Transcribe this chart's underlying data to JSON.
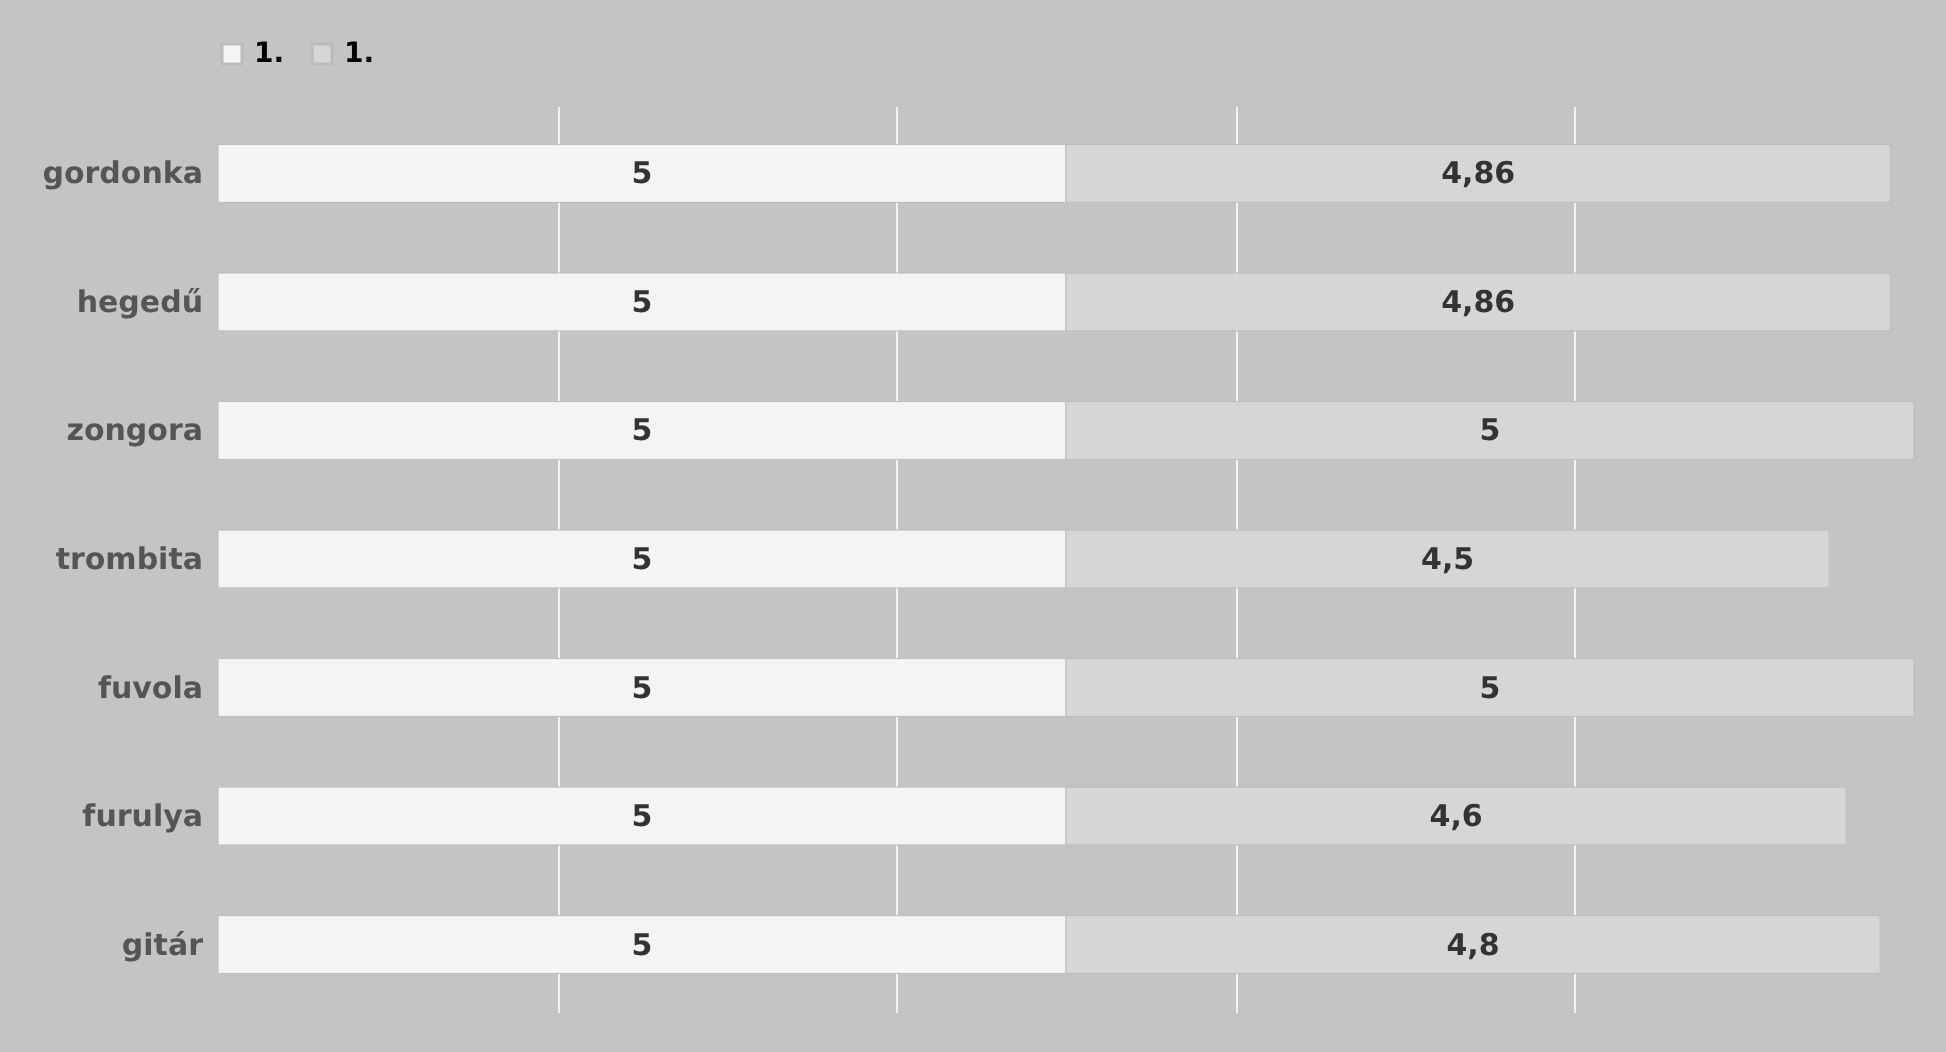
{
  "chart_data": {
    "type": "bar",
    "orientation": "horizontal",
    "stacked": true,
    "categories": [
      "gordonka",
      "hegedű",
      "zongora",
      "trombita",
      "fuvola",
      "furulya",
      "gitár"
    ],
    "series": [
      {
        "name": "1.",
        "color": "#f4f4f4",
        "values": [
          5,
          5,
          5,
          5,
          5,
          5,
          5
        ],
        "value_labels": [
          "5",
          "5",
          "5",
          "5",
          "5",
          "5",
          "5"
        ]
      },
      {
        "name": "1.",
        "color": "#d6d6d6",
        "values": [
          4.86,
          4.86,
          5,
          4.5,
          5,
          4.6,
          4.8
        ],
        "value_labels": [
          "4,86",
          "4,86",
          "5",
          "4,5",
          "5",
          "4,6",
          "4,8"
        ]
      }
    ],
    "xlim": [
      0,
      10
    ],
    "xticks": [
      {
        "value": 2,
        "label": null
      },
      {
        "value": 4,
        "label": null
      },
      {
        "value": 6,
        "label": null
      },
      {
        "value": 8,
        "label": null
      }
    ],
    "grid": "x",
    "legend": "top",
    "tick_labels": "y"
  }
}
